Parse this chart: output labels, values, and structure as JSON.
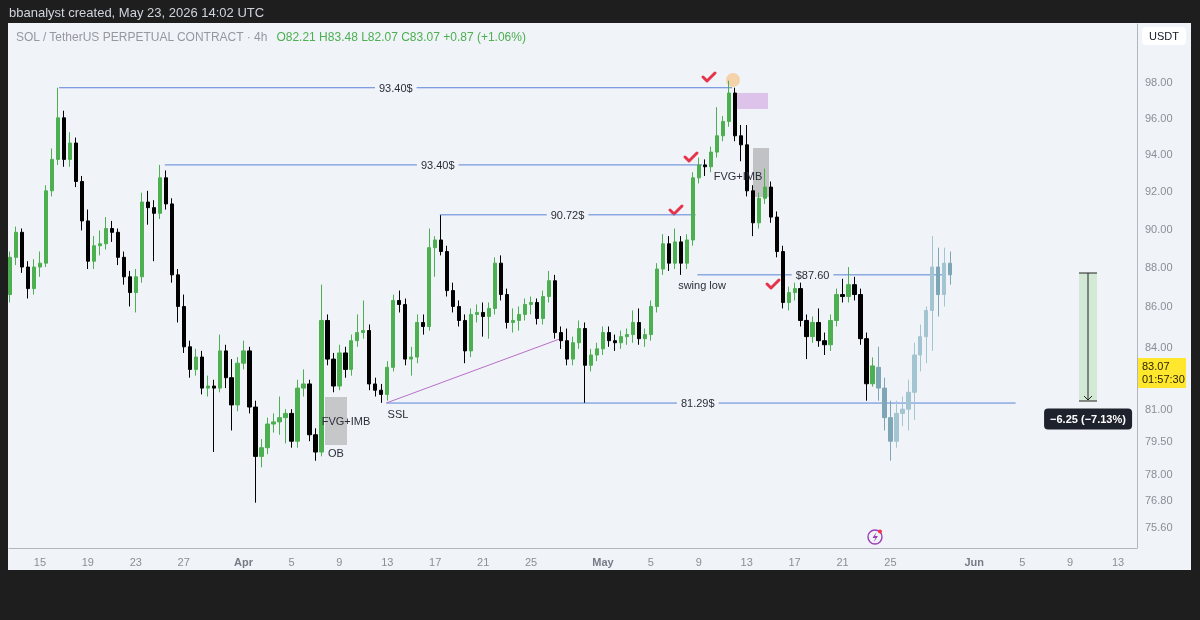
{
  "chart_data": {
    "type": "candlestick",
    "title": "SOL / TetherUS PERPETUAL CONTRACT · 4h",
    "subtitle": "O82.21 H83.48 L82.07 C83.07 +0.87 (+1.06%)",
    "ylabel": "USDT",
    "log": "y",
    "xlim": [
      "2026-03-12T10:00",
      "2026-06-14T14:00"
    ],
    "xticks": [
      {
        "value": "2026-03-15",
        "label": "15"
      },
      {
        "value": "2026-03-19",
        "label": "19"
      },
      {
        "value": "2026-03-23",
        "label": "23"
      },
      {
        "value": "2026-03-27",
        "label": "27"
      },
      {
        "value": "2026-04-01",
        "label": "Apr"
      },
      {
        "value": "2026-04-05",
        "label": "5"
      },
      {
        "value": "2026-04-09",
        "label": "9"
      },
      {
        "value": "2026-04-13",
        "label": "13"
      },
      {
        "value": "2026-04-17",
        "label": "17"
      },
      {
        "value": "2026-04-21",
        "label": "21"
      },
      {
        "value": "2026-04-25",
        "label": "25"
      },
      {
        "value": "2026-05-01",
        "label": "May"
      },
      {
        "value": "2026-05-05",
        "label": "5"
      },
      {
        "value": "2026-05-09",
        "label": "9"
      },
      {
        "value": "2026-05-13",
        "label": "13"
      },
      {
        "value": "2026-05-17",
        "label": "17"
      },
      {
        "value": "2026-05-21",
        "label": "21"
      },
      {
        "value": "2026-05-25",
        "label": "25"
      },
      {
        "value": "2026-06-01",
        "label": "Jun"
      },
      {
        "value": "2026-06-05",
        "label": "5"
      },
      {
        "value": "2026-06-09",
        "label": "9"
      },
      {
        "value": "2026-06-13",
        "label": "13"
      }
    ],
    "ylim": [
      74.7,
      101.4
    ],
    "yticks": [
      {
        "value": 75.6,
        "label": "75.60"
      },
      {
        "value": 76.8,
        "label": "76.80"
      },
      {
        "value": 78,
        "label": "78.00"
      },
      {
        "value": 79.5,
        "label": "79.50"
      },
      {
        "value": 81,
        "label": "81.00"
      },
      {
        "value": 84,
        "label": "84.00"
      },
      {
        "value": 86,
        "label": "86.00"
      },
      {
        "value": 88,
        "label": "88.00"
      },
      {
        "value": 90,
        "label": "90.00"
      },
      {
        "value": 92,
        "label": "92.00"
      },
      {
        "value": 94,
        "label": "94.00"
      },
      {
        "value": 96,
        "label": "96.00"
      },
      {
        "value": 98,
        "label": "98.00"
      }
    ],
    "grid": false,
    "series": [
      {
        "type": "line",
        "color": "#5b84d8",
        "x": [
          "2026-03-16T15:00",
          "2026-05-11T18:00"
        ],
        "values": [
          97.7,
          97.7
        ]
      },
      {
        "type": "line",
        "color": "#5b84d8",
        "x": [
          "2026-03-25T11:00",
          "2026-05-09T06:00"
        ],
        "values": [
          93.4,
          93.4
        ]
      },
      {
        "type": "line",
        "color": "#5b84d8",
        "x": [
          "2026-04-17T10:00",
          "2026-05-08T17:00"
        ],
        "values": [
          90.72,
          90.72
        ]
      },
      {
        "type": "line",
        "color": "#5b84d8",
        "x": [
          "2026-05-08T22:00",
          "2026-05-29T07:00"
        ],
        "values": [
          87.6,
          87.6
        ]
      },
      {
        "type": "line",
        "color": "#5b84d8",
        "x": [
          "2026-04-12T23:00",
          "2026-06-04T10:00"
        ],
        "values": [
          81.29,
          81.29
        ]
      },
      {
        "type": "line",
        "color": "#b86fca",
        "x": [
          "2026-04-12T23:00",
          "2026-04-27T11:00"
        ],
        "values": [
          81.3,
          84.4
        ]
      },
      {
        "x": [
          "2026-03-12T12:00",
          "2026-03-13T00:00",
          "2026-03-13T12:00",
          "2026-03-14T00:00",
          "2026-03-14T12:00",
          "2026-03-15T00:00",
          "2026-03-15T12:00",
          "2026-03-16T00:00",
          "2026-03-16T12:00",
          "2026-03-17T00:00",
          "2026-03-17T12:00",
          "2026-03-18T00:00",
          "2026-03-18T12:00",
          "2026-03-19T00:00",
          "2026-03-19T12:00",
          "2026-03-20T00:00",
          "2026-03-20T12:00",
          "2026-03-21T00:00",
          "2026-03-21T12:00",
          "2026-03-22T00:00",
          "2026-03-22T12:00",
          "2026-03-23T00:00",
          "2026-03-23T12:00",
          "2026-03-24T00:00",
          "2026-03-24T12:00",
          "2026-03-25T00:00",
          "2026-03-25T12:00",
          "2026-03-26T00:00",
          "2026-03-26T12:00",
          "2026-03-27T00:00",
          "2026-03-27T12:00",
          "2026-03-28T00:00",
          "2026-03-28T12:00",
          "2026-03-29T00:00",
          "2026-03-29T12:00",
          "2026-03-30T00:00",
          "2026-03-30T12:00",
          "2026-03-31T00:00",
          "2026-03-31T12:00",
          "2026-04-01T00:00",
          "2026-04-01T12:00",
          "2026-04-02T00:00",
          "2026-04-02T12:00",
          "2026-04-03T00:00",
          "2026-04-03T12:00",
          "2026-04-04T00:00",
          "2026-04-04T12:00",
          "2026-04-05T00:00",
          "2026-04-05T12:00",
          "2026-04-06T00:00",
          "2026-04-06T12:00",
          "2026-04-07T00:00",
          "2026-04-07T12:00",
          "2026-04-08T00:00",
          "2026-04-08T12:00",
          "2026-04-09T00:00",
          "2026-04-09T12:00",
          "2026-04-10T00:00",
          "2026-04-10T12:00",
          "2026-04-11T00:00",
          "2026-04-11T12:00",
          "2026-04-12T00:00",
          "2026-04-12T12:00",
          "2026-04-13T00:00",
          "2026-04-13T12:00",
          "2026-04-14T00:00",
          "2026-04-14T12:00",
          "2026-04-15T00:00",
          "2026-04-15T12:00",
          "2026-04-16T00:00",
          "2026-04-16T12:00",
          "2026-04-17T00:00",
          "2026-04-17T12:00",
          "2026-04-18T00:00",
          "2026-04-18T12:00",
          "2026-04-19T00:00",
          "2026-04-19T12:00",
          "2026-04-20T00:00",
          "2026-04-20T12:00",
          "2026-04-21T00:00",
          "2026-04-21T12:00",
          "2026-04-22T00:00",
          "2026-04-22T12:00",
          "2026-04-23T00:00",
          "2026-04-23T12:00",
          "2026-04-24T00:00",
          "2026-04-24T12:00",
          "2026-04-25T00:00",
          "2026-04-25T12:00",
          "2026-04-26T00:00",
          "2026-04-26T12:00",
          "2026-04-27T00:00",
          "2026-04-27T12:00",
          "2026-04-28T00:00",
          "2026-04-28T12:00",
          "2026-04-29T00:00",
          "2026-04-29T12:00",
          "2026-04-30T00:00",
          "2026-04-30T12:00",
          "2026-05-01T00:00",
          "2026-05-01T12:00",
          "2026-05-02T00:00",
          "2026-05-02T12:00",
          "2026-05-03T00:00",
          "2026-05-03T12:00",
          "2026-05-04T00:00",
          "2026-05-04T12:00",
          "2026-05-05T00:00",
          "2026-05-05T12:00",
          "2026-05-06T00:00",
          "2026-05-06T12:00",
          "2026-05-07T00:00",
          "2026-05-07T12:00",
          "2026-05-08T00:00",
          "2026-05-08T12:00",
          "2026-05-09T00:00",
          "2026-05-09T12:00",
          "2026-05-10T00:00",
          "2026-05-10T12:00",
          "2026-05-11T00:00",
          "2026-05-11T12:00",
          "2026-05-12T00:00",
          "2026-05-12T12:00",
          "2026-05-13T00:00",
          "2026-05-13T12:00",
          "2026-05-14T00:00",
          "2026-05-14T12:00",
          "2026-05-15T00:00",
          "2026-05-15T12:00",
          "2026-05-16T00:00",
          "2026-05-16T12:00",
          "2026-05-17T00:00",
          "2026-05-17T12:00",
          "2026-05-18T00:00",
          "2026-05-18T12:00",
          "2026-05-19T00:00",
          "2026-05-19T12:00",
          "2026-05-20T00:00",
          "2026-05-20T12:00",
          "2026-05-21T00:00",
          "2026-05-21T12:00",
          "2026-05-22T00:00",
          "2026-05-22T12:00",
          "2026-05-23T00:00",
          "2026-05-23T12:00"
        ],
        "ohlc": [
          [
            86.6,
            88.8,
            86.2,
            88.5
          ],
          [
            88.5,
            90.1,
            88.1,
            89.8
          ],
          [
            89.8,
            90.0,
            87.7,
            88.0
          ],
          [
            88.0,
            88.3,
            86.4,
            86.9
          ],
          [
            86.9,
            88.4,
            86.6,
            88.0
          ],
          [
            88.0,
            88.8,
            87.5,
            88.2
          ],
          [
            88.2,
            92.3,
            88.0,
            92.0
          ],
          [
            92.0,
            94.3,
            91.7,
            93.7
          ],
          [
            93.7,
            97.7,
            93.4,
            96.0
          ],
          [
            96.0,
            96.4,
            93.3,
            93.7
          ],
          [
            93.7,
            95.2,
            93.3,
            94.6
          ],
          [
            94.6,
            94.9,
            92.2,
            92.5
          ],
          [
            92.5,
            92.8,
            89.9,
            90.4
          ],
          [
            90.4,
            91.0,
            87.9,
            88.3
          ],
          [
            88.3,
            89.6,
            87.9,
            89.1
          ],
          [
            89.1,
            89.9,
            88.6,
            89.2
          ],
          [
            89.2,
            90.6,
            88.9,
            90.0
          ],
          [
            90.0,
            90.4,
            89.3,
            89.8
          ],
          [
            89.8,
            90.0,
            88.1,
            88.5
          ],
          [
            88.5,
            88.8,
            87.1,
            87.5
          ],
          [
            87.5,
            87.8,
            86.0,
            86.7
          ],
          [
            86.7,
            87.9,
            85.7,
            87.5
          ],
          [
            87.5,
            91.9,
            87.2,
            91.4
          ],
          [
            91.4,
            92.0,
            90.2,
            91.1
          ],
          [
            91.1,
            91.5,
            88.3,
            90.8
          ],
          [
            90.8,
            93.4,
            90.5,
            92.7
          ],
          [
            92.7,
            93.1,
            91.0,
            91.3
          ],
          [
            91.3,
            91.6,
            87.2,
            87.6
          ],
          [
            87.6,
            87.9,
            85.2,
            86.0
          ],
          [
            86.0,
            86.6,
            83.7,
            84.0
          ],
          [
            84.0,
            84.3,
            82.5,
            82.9
          ],
          [
            82.9,
            83.9,
            82.6,
            83.5
          ],
          [
            83.5,
            83.8,
            81.7,
            82.0
          ],
          [
            82.0,
            82.6,
            81.6,
            82.1
          ],
          [
            82.1,
            82.4,
            79.0,
            82.0
          ],
          [
            82.0,
            84.6,
            81.8,
            83.8
          ],
          [
            83.8,
            84.1,
            82.0,
            82.5
          ],
          [
            82.5,
            83.4,
            80.0,
            81.2
          ],
          [
            81.2,
            83.5,
            80.9,
            83.2
          ],
          [
            83.2,
            84.3,
            82.9,
            83.8
          ],
          [
            83.8,
            84.0,
            80.8,
            81.1
          ],
          [
            81.1,
            81.4,
            76.7,
            78.8
          ],
          [
            78.8,
            79.6,
            78.3,
            79.2
          ],
          [
            79.2,
            80.6,
            78.9,
            80.3
          ],
          [
            80.3,
            80.8,
            79.9,
            80.4
          ],
          [
            80.4,
            81.6,
            79.8,
            80.6
          ],
          [
            80.6,
            81.0,
            79.4,
            80.8
          ],
          [
            80.8,
            81.0,
            79.2,
            79.5
          ],
          [
            79.5,
            82.4,
            79.2,
            82.0
          ],
          [
            82.0,
            82.9,
            81.6,
            82.2
          ],
          [
            82.2,
            82.4,
            79.5,
            79.8
          ],
          [
            79.8,
            80.1,
            78.6,
            79.0
          ],
          [
            79.0,
            87.1,
            78.8,
            85.3
          ],
          [
            85.3,
            85.6,
            83.1,
            83.4
          ],
          [
            83.4,
            83.7,
            81.8,
            82.1
          ],
          [
            82.1,
            84.1,
            81.9,
            83.7
          ],
          [
            83.7,
            84.0,
            82.5,
            82.9
          ],
          [
            82.9,
            84.6,
            82.6,
            84.3
          ],
          [
            84.3,
            85.6,
            84.0,
            84.7
          ],
          [
            84.7,
            86.3,
            84.4,
            84.8
          ],
          [
            84.8,
            85.1,
            81.9,
            82.2
          ],
          [
            82.2,
            82.5,
            81.6,
            81.9
          ],
          [
            81.9,
            82.2,
            81.3,
            81.7
          ],
          [
            81.7,
            83.3,
            81.4,
            83.0
          ],
          [
            83.0,
            86.6,
            82.8,
            86.3
          ],
          [
            86.3,
            86.8,
            85.7,
            86.1
          ],
          [
            86.1,
            86.4,
            83.1,
            83.4
          ],
          [
            83.4,
            84.0,
            82.6,
            83.5
          ],
          [
            83.5,
            85.6,
            83.2,
            85.2
          ],
          [
            85.2,
            85.6,
            84.6,
            85.0
          ],
          [
            85.0,
            90.0,
            84.8,
            89.0
          ],
          [
            89.0,
            89.6,
            87.5,
            89.4
          ],
          [
            89.4,
            90.7,
            88.6,
            88.8
          ],
          [
            88.8,
            89.1,
            86.5,
            86.8
          ],
          [
            86.8,
            87.2,
            85.7,
            86.0
          ],
          [
            86.0,
            86.3,
            85.0,
            85.3
          ],
          [
            85.3,
            85.6,
            83.2,
            83.8
          ],
          [
            83.8,
            85.9,
            83.5,
            85.6
          ],
          [
            85.6,
            86.1,
            85.2,
            85.7
          ],
          [
            85.7,
            86.2,
            84.5,
            85.5
          ],
          [
            85.5,
            86.2,
            84.4,
            85.9
          ],
          [
            85.9,
            88.5,
            85.6,
            88.2
          ],
          [
            88.2,
            88.6,
            86.3,
            86.6
          ],
          [
            86.6,
            86.9,
            84.9,
            85.2
          ],
          [
            85.2,
            85.9,
            84.7,
            85.3
          ],
          [
            85.3,
            86.0,
            84.8,
            85.6
          ],
          [
            85.6,
            86.4,
            85.3,
            86.1
          ],
          [
            86.1,
            86.5,
            85.6,
            86.2
          ],
          [
            86.2,
            86.4,
            85.1,
            85.4
          ],
          [
            85.4,
            86.8,
            85.1,
            86.5
          ],
          [
            86.5,
            87.8,
            86.2,
            87.3
          ],
          [
            87.3,
            87.6,
            84.4,
            84.7
          ],
          [
            84.7,
            85.0,
            83.9,
            84.3
          ],
          [
            84.3,
            84.9,
            83.1,
            83.4
          ],
          [
            83.4,
            84.5,
            83.1,
            84.2
          ],
          [
            84.2,
            85.3,
            83.9,
            84.9
          ],
          [
            84.9,
            85.2,
            81.3,
            83.1
          ],
          [
            83.1,
            83.9,
            82.8,
            83.6
          ],
          [
            83.6,
            84.2,
            83.3,
            83.9
          ],
          [
            83.9,
            85.0,
            83.6,
            84.7
          ],
          [
            84.7,
            85.0,
            84.0,
            84.3
          ],
          [
            84.3,
            84.6,
            83.8,
            84.2
          ],
          [
            84.2,
            84.8,
            83.9,
            84.5
          ],
          [
            84.5,
            84.9,
            84.1,
            84.6
          ],
          [
            84.6,
            85.8,
            84.2,
            85.2
          ],
          [
            85.2,
            85.9,
            84.1,
            84.4
          ],
          [
            84.4,
            84.9,
            84.0,
            84.6
          ],
          [
            84.6,
            86.3,
            84.3,
            86.0
          ],
          [
            86.0,
            88.2,
            85.7,
            87.9
          ],
          [
            87.9,
            89.7,
            87.6,
            89.2
          ],
          [
            89.2,
            89.6,
            87.8,
            88.2
          ],
          [
            88.2,
            90.0,
            87.9,
            89.3
          ],
          [
            89.3,
            89.6,
            87.6,
            88.2
          ],
          [
            88.2,
            89.7,
            87.9,
            89.4
          ],
          [
            89.4,
            93.0,
            89.1,
            92.7
          ],
          [
            92.7,
            93.8,
            92.4,
            93.4
          ],
          [
            93.4,
            93.7,
            92.8,
            93.3
          ],
          [
            93.3,
            94.4,
            93.0,
            94.1
          ],
          [
            94.1,
            96.6,
            93.8,
            95.0
          ],
          [
            95.0,
            96.1,
            94.7,
            95.8
          ],
          [
            95.8,
            98.1,
            95.5,
            97.4
          ],
          [
            97.4,
            97.7,
            94.7,
            95.0
          ],
          [
            95.0,
            95.6,
            93.6,
            94.5
          ],
          [
            94.5,
            95.6,
            91.7,
            92.0
          ],
          [
            92.0,
            92.3,
            89.6,
            90.3
          ],
          [
            90.3,
            91.9,
            90.0,
            91.6
          ],
          [
            91.6,
            93.2,
            91.3,
            92.2
          ],
          [
            92.2,
            92.5,
            90.3,
            90.6
          ],
          [
            90.6,
            90.9,
            88.5,
            88.8
          ],
          [
            88.8,
            89.1,
            85.9,
            86.2
          ],
          [
            86.2,
            87.0,
            85.8,
            86.7
          ],
          [
            86.7,
            87.2,
            86.3,
            86.9
          ],
          [
            86.9,
            87.2,
            85.0,
            85.3
          ],
          [
            85.3,
            85.6,
            83.4,
            84.5
          ],
          [
            84.5,
            85.5,
            84.2,
            85.2
          ],
          [
            85.2,
            85.9,
            84.0,
            84.3
          ],
          [
            84.3,
            84.7,
            83.6,
            84.1
          ],
          [
            84.1,
            85.6,
            83.8,
            85.3
          ],
          [
            85.3,
            86.9,
            85.0,
            86.6
          ],
          [
            86.6,
            87.4,
            86.2,
            86.5
          ],
          [
            86.5,
            88.0,
            86.2,
            87.1
          ],
          [
            87.1,
            87.5,
            86.3,
            86.6
          ],
          [
            86.6,
            86.9,
            84.1,
            84.4
          ],
          [
            84.4,
            84.7,
            81.4,
            82.21
          ],
          [
            82.21,
            83.48,
            82.07,
            83.07
          ]
        ],
        "colors": [
          "#4caf50",
          "#4caf50",
          "#000000",
          "#000000",
          "#4caf50",
          "#4caf50",
          "#4caf50",
          "#4caf50",
          "#4caf50",
          "#000000",
          "#4caf50",
          "#000000",
          "#000000",
          "#000000",
          "#4caf50",
          "#4caf50",
          "#4caf50",
          "#000000",
          "#000000",
          "#000000",
          "#000000",
          "#4caf50",
          "#4caf50",
          "#000000",
          "#000000",
          "#4caf50",
          "#000000",
          "#000000",
          "#000000",
          "#000000",
          "#000000",
          "#4caf50",
          "#000000",
          "#4caf50",
          "#000000",
          "#4caf50",
          "#000000",
          "#000000",
          "#4caf50",
          "#4caf50",
          "#000000",
          "#000000",
          "#4caf50",
          "#4caf50",
          "#4caf50",
          "#4caf50",
          "#4caf50",
          "#000000",
          "#4caf50",
          "#4caf50",
          "#000000",
          "#000000",
          "#4caf50",
          "#000000",
          "#000000",
          "#4caf50",
          "#000000",
          "#4caf50",
          "#4caf50",
          "#4caf50",
          "#000000",
          "#000000",
          "#000000",
          "#4caf50",
          "#4caf50",
          "#000000",
          "#000000",
          "#4caf50",
          "#4caf50",
          "#000000",
          "#4caf50",
          "#4caf50",
          "#000000",
          "#000000",
          "#000000",
          "#000000",
          "#000000",
          "#4caf50",
          "#4caf50",
          "#000000",
          "#4caf50",
          "#4caf50",
          "#000000",
          "#000000",
          "#4caf50",
          "#4caf50",
          "#4caf50",
          "#4caf50",
          "#000000",
          "#4caf50",
          "#4caf50",
          "#000000",
          "#000000",
          "#000000",
          "#4caf50",
          "#4caf50",
          "#000000",
          "#4caf50",
          "#4caf50",
          "#4caf50",
          "#000000",
          "#000000",
          "#4caf50",
          "#4caf50",
          "#4caf50",
          "#000000",
          "#4caf50",
          "#4caf50",
          "#4caf50",
          "#4caf50",
          "#000000",
          "#4caf50",
          "#000000",
          "#4caf50",
          "#4caf50",
          "#4caf50",
          "#000000",
          "#4caf50",
          "#4caf50",
          "#4caf50",
          "#4caf50",
          "#000000",
          "#000000",
          "#000000",
          "#000000",
          "#4caf50",
          "#4caf50",
          "#000000",
          "#000000",
          "#000000",
          "#4caf50",
          "#4caf50",
          "#000000",
          "#000000",
          "#4caf50",
          "#000000",
          "#000000",
          "#4caf50",
          "#4caf50",
          "#000000",
          "#4caf50",
          "#000000",
          "#000000",
          "#000000",
          "#4caf50"
        ]
      },
      {
        "x": [
          "2026-05-24T00:00",
          "2026-05-24T12:00",
          "2026-05-25T00:00",
          "2026-05-25T12:00",
          "2026-05-26T00:00",
          "2026-05-26T12:00",
          "2026-05-27T00:00",
          "2026-05-27T12:00",
          "2026-05-28T00:00",
          "2026-05-28T12:00",
          "2026-05-29T00:00",
          "2026-05-29T12:00",
          "2026-05-30T00:00"
        ],
        "ohlc": [
          [
            83.0,
            84.0,
            81.4,
            82.0
          ],
          [
            82.0,
            82.5,
            80.0,
            80.6
          ],
          [
            80.6,
            81.4,
            78.6,
            79.5
          ],
          [
            79.5,
            81.4,
            79.2,
            80.8
          ],
          [
            80.8,
            81.6,
            80.2,
            81.0
          ],
          [
            81.0,
            82.4,
            80.0,
            81.8
          ],
          [
            81.8,
            84.2,
            80.5,
            83.6
          ],
          [
            83.6,
            85.1,
            82.8,
            84.5
          ],
          [
            84.5,
            86.0,
            83.2,
            85.8
          ],
          [
            85.8,
            89.6,
            83.8,
            88.0
          ],
          [
            88.0,
            89.0,
            85.5,
            86.6
          ],
          [
            86.6,
            89.0,
            86.0,
            88.2
          ],
          [
            88.2,
            88.8,
            87.1,
            87.6
          ]
        ],
        "colors": [
          "#7ea6b6",
          "#7ea6b6",
          "#7ea6b6",
          "#a3c4d1",
          "#a3c4d1",
          "#a3c4d1",
          "#a3c4d1",
          "#a3c4d1",
          "#a3c4d1",
          "#a3c4d1",
          "#7ea6b6",
          "#a3c4d1",
          "#7ea6b6"
        ]
      }
    ],
    "annotations": [
      "bbanalyst created, May 23, 2026 14:02 UTC",
      {
        "text": "93.40$",
        "x": "2026-04-13T17:00",
        "y": 97.7
      },
      {
        "text": "93.40$",
        "x": "2026-04-17T05:00",
        "y": 93.4
      },
      {
        "text": "90.72$",
        "x": "2026-04-28T01:00",
        "y": 90.72
      },
      {
        "text": "$87.60",
        "x": "2026-05-18T12:00",
        "y": 87.6
      },
      {
        "text": "81.29$",
        "x": "2026-05-08T22:00",
        "y": 81.29
      },
      "swing low",
      "FVG+IMB",
      "FVG+IMB",
      "OB",
      "SSL",
      "−6.25 (−7.13%)",
      "83.07\n01:57:30"
    ]
  }
}
